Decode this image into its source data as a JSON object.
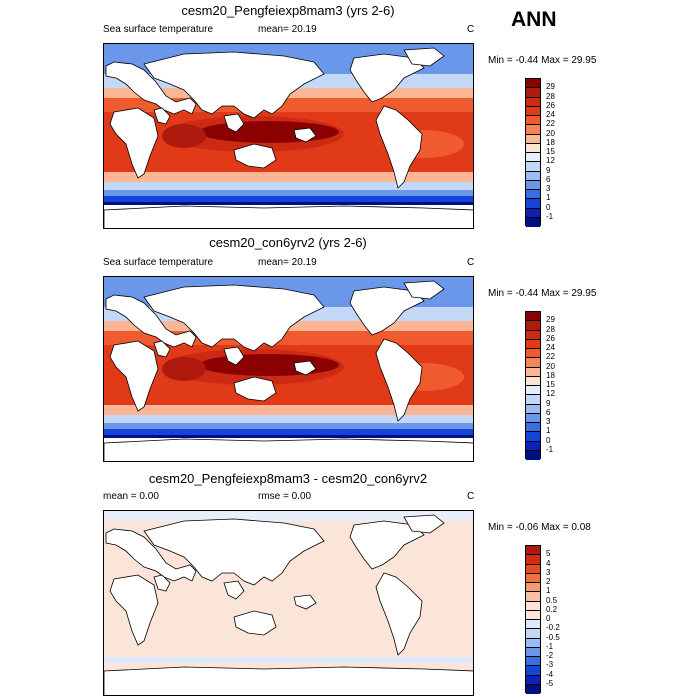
{
  "season": "ANN",
  "panels": [
    {
      "title": "cesm20_Pengfeiexp8mam3 (yrs 2-6)",
      "left_label": "Sea surface temperature",
      "mid_label": "mean=  20.19",
      "units": "C",
      "minmax": "Min =  -0.44 Max =  29.95",
      "colorbar_levels": [
        "29",
        "28",
        "26",
        "24",
        "22",
        "20",
        "18",
        "15",
        "12",
        "9",
        "6",
        "3",
        "1",
        "0",
        "-1"
      ],
      "colorbar_colors": [
        "#8b0000",
        "#b01a0e",
        "#cc2a12",
        "#e03a18",
        "#ef5a2e",
        "#f6845a",
        "#fbb696",
        "#fde3d4",
        "#e6eefb",
        "#c3d8f7",
        "#9bbcf1",
        "#6a97ea",
        "#3a6ee4",
        "#1346d8",
        "#0a22b8",
        "#000f80"
      ]
    },
    {
      "title": "cesm20_con6yrv2 (yrs 2-6)",
      "left_label": "Sea surface temperature",
      "mid_label": "mean=  20.19",
      "units": "C",
      "minmax": "Min =  -0.44 Max =  29.95",
      "colorbar_levels": [
        "29",
        "28",
        "26",
        "24",
        "22",
        "20",
        "18",
        "15",
        "12",
        "9",
        "6",
        "3",
        "1",
        "0",
        "-1"
      ],
      "colorbar_colors": [
        "#8b0000",
        "#b01a0e",
        "#cc2a12",
        "#e03a18",
        "#ef5a2e",
        "#f6845a",
        "#fbb696",
        "#fde3d4",
        "#e6eefb",
        "#c3d8f7",
        "#9bbcf1",
        "#6a97ea",
        "#3a6ee4",
        "#1346d8",
        "#0a22b8",
        "#000f80"
      ]
    },
    {
      "title": "cesm20_Pengfeiexp8mam3 - cesm20_con6yrv2",
      "left_label": "mean =   0.00",
      "mid_label": "rmse =   0.00",
      "units": "C",
      "minmax": "Min =  -0.06 Max =   0.08",
      "colorbar_levels": [
        "5",
        "4",
        "3",
        "2",
        "1",
        "0.5",
        "0.2",
        "0",
        "-0.2",
        "-0.5",
        "-1",
        "-2",
        "-3",
        "-4",
        "-5"
      ],
      "colorbar_colors": [
        "#b01a0e",
        "#d42c14",
        "#e84a24",
        "#f2703e",
        "#f69a70",
        "#fbc1a3",
        "#fde3d4",
        "#fbe5d8",
        "#dde8f8",
        "#c3d8f7",
        "#9bbcf1",
        "#6a97ea",
        "#3a6ee4",
        "#1346d8",
        "#0a22b8",
        "#000f80"
      ]
    }
  ]
}
